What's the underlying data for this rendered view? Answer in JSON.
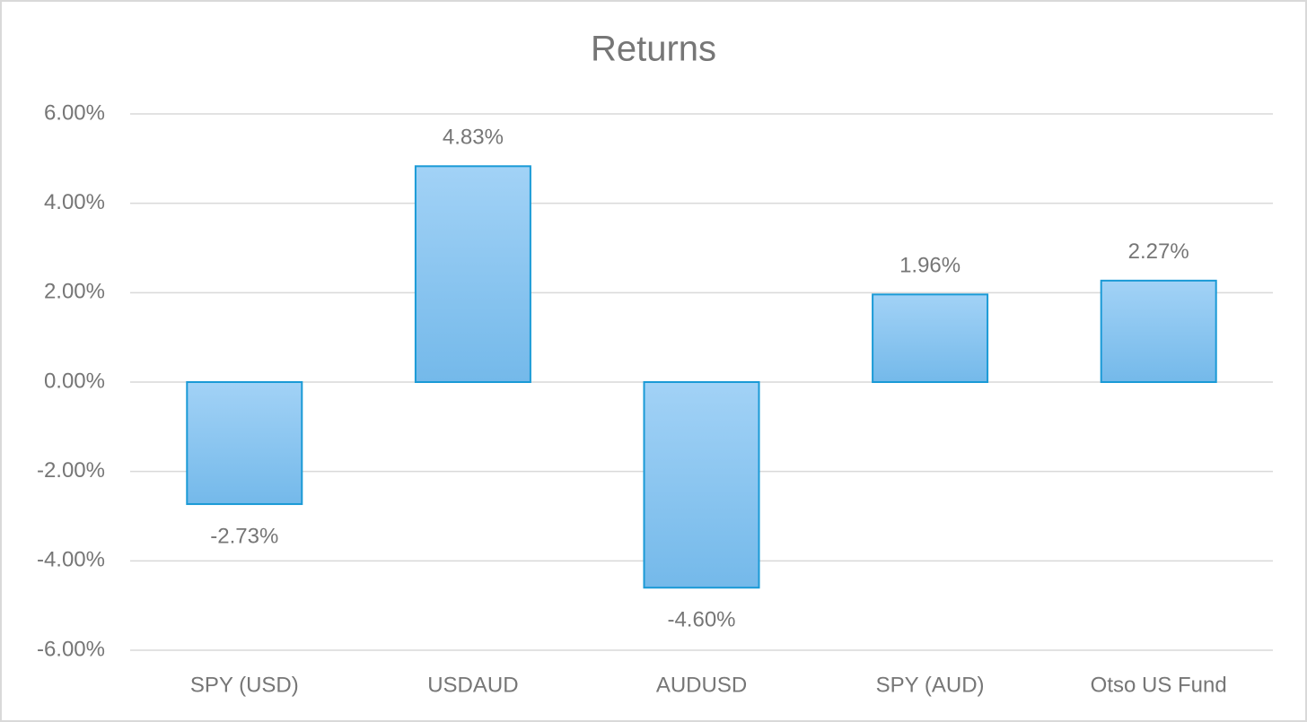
{
  "chart_data": {
    "type": "bar",
    "title": "Returns",
    "categories": [
      "SPY (USD)",
      "USDAUD",
      "AUDUSD",
      "SPY (AUD)",
      "Otso US Fund"
    ],
    "values": [
      -2.73,
      4.83,
      -4.6,
      1.96,
      2.27
    ],
    "value_labels": [
      "-2.73%",
      "4.83%",
      "-4.60%",
      "1.96%",
      "2.27%"
    ],
    "color": "#83c1ec",
    "ylim": [
      -6,
      6
    ],
    "yticks": [
      {
        "value": -6,
        "label": "-6.00%"
      },
      {
        "value": -4,
        "label": "-4.00%"
      },
      {
        "value": -2,
        "label": "-2.00%"
      },
      {
        "value": 0,
        "label": "0.00%"
      },
      {
        "value": 2,
        "label": "2.00%"
      },
      {
        "value": 4,
        "label": "4.00%"
      },
      {
        "value": 6,
        "label": "6.00%"
      }
    ],
    "grid": true
  }
}
